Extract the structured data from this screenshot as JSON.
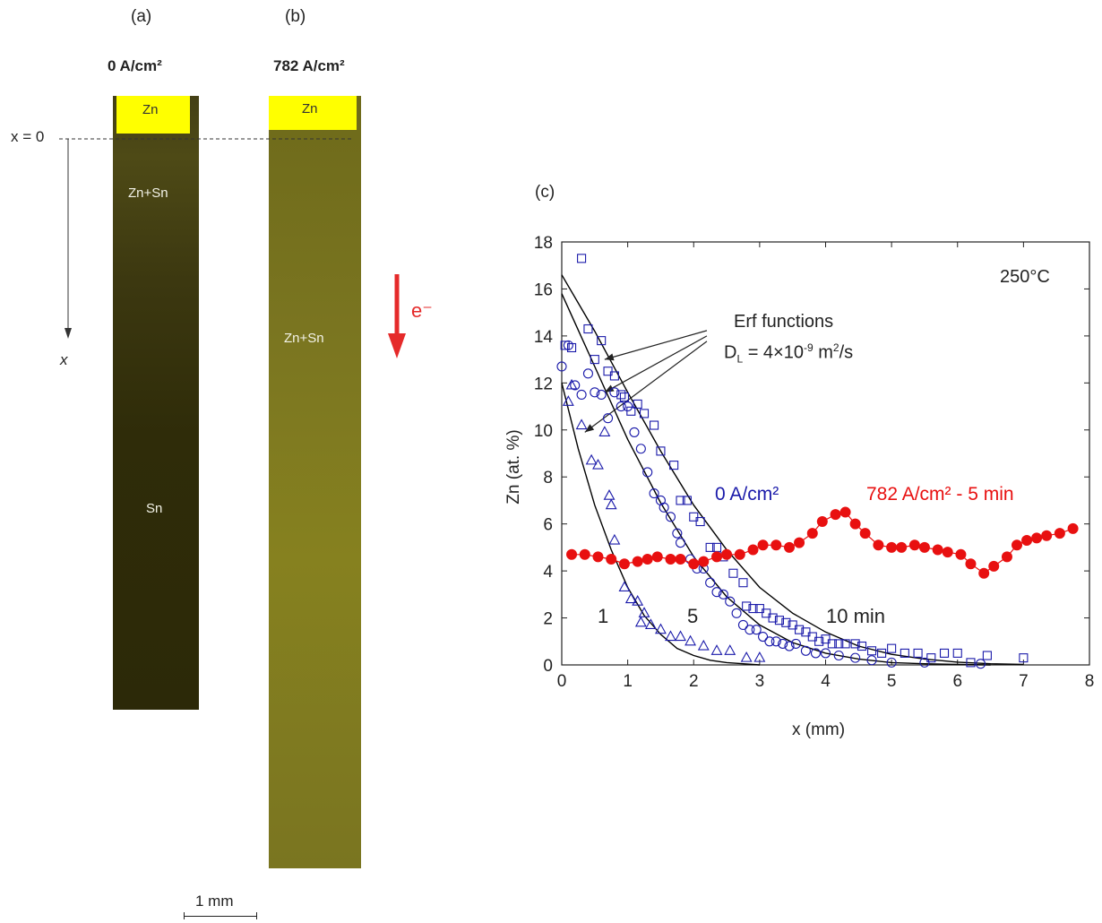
{
  "panels": {
    "a": {
      "label": "(a)",
      "current": "0 A/cm²",
      "zones": {
        "top": "Zn",
        "middle": "Zn+Sn",
        "bottom": "Sn"
      }
    },
    "b": {
      "label": "(b)",
      "current": "782 A/cm²",
      "zones": {
        "top": "Zn",
        "middle": "Zn+Sn"
      }
    },
    "c": {
      "label": "(c)"
    }
  },
  "axis_marker": {
    "origin": "x = 0",
    "direction": "x"
  },
  "electron_flow": "e⁻",
  "scale_bar": "1 mm",
  "colors": {
    "zn_layer": "#ffff00",
    "sample_dark": "#2a2608",
    "fit_line": "#000000",
    "zero_current": "#1a1aaa",
    "high_current": "#e81010",
    "arrow_red": "#e52a2a"
  },
  "chart_data": {
    "type": "scatter",
    "xlabel": "x (mm)",
    "ylabel": "Zn (at. %)",
    "xlim": [
      0,
      8
    ],
    "ylim": [
      0,
      18
    ],
    "xticks": [
      0,
      1,
      2,
      3,
      4,
      5,
      6,
      7,
      8
    ],
    "yticks": [
      0,
      2,
      4,
      6,
      8,
      10,
      12,
      14,
      16,
      18
    ],
    "grid": false,
    "annotations": {
      "temperature": "250°C",
      "fit_title": "Erf functions",
      "fit_diffusivity": "D",
      "fit_diffusivity_sub": "L",
      "fit_diffusivity_value": " = 4×10",
      "fit_diffusivity_exp": "-9",
      "fit_diffusivity_units": " m",
      "fit_diffusivity_units_exp": "2",
      "fit_diffusivity_units_end": "/s",
      "zero_current_label": "0 A/cm²",
      "high_current_label": "782 A/cm² - 5 min",
      "time_1": "1",
      "time_5": "5",
      "time_10": "10 min"
    },
    "series": [
      {
        "marker": "triangle",
        "points": [
          [
            0.1,
            11.2
          ],
          [
            0.15,
            11.9
          ],
          [
            0.3,
            10.2
          ],
          [
            0.45,
            8.7
          ],
          [
            0.55,
            8.5
          ],
          [
            0.65,
            9.9
          ],
          [
            0.72,
            7.2
          ],
          [
            0.75,
            6.8
          ],
          [
            0.8,
            5.3
          ],
          [
            0.95,
            3.3
          ],
          [
            1.05,
            2.8
          ],
          [
            1.15,
            2.7
          ],
          [
            1.2,
            1.8
          ],
          [
            1.25,
            2.2
          ],
          [
            1.35,
            1.7
          ],
          [
            1.5,
            1.5
          ],
          [
            1.65,
            1.2
          ],
          [
            1.8,
            1.2
          ],
          [
            1.95,
            1.0
          ],
          [
            2.15,
            0.8
          ],
          [
            2.35,
            0.6
          ],
          [
            2.55,
            0.6
          ],
          [
            2.8,
            0.3
          ],
          [
            3.0,
            0.3
          ]
        ]
      },
      {
        "marker": "circle",
        "points": [
          [
            0.0,
            12.7
          ],
          [
            0.1,
            13.6
          ],
          [
            0.2,
            11.9
          ],
          [
            0.3,
            11.5
          ],
          [
            0.4,
            12.4
          ],
          [
            0.5,
            11.6
          ],
          [
            0.6,
            11.5
          ],
          [
            0.7,
            10.5
          ],
          [
            0.8,
            11.6
          ],
          [
            0.9,
            11.0
          ],
          [
            1.0,
            11.0
          ],
          [
            1.1,
            9.9
          ],
          [
            1.2,
            9.2
          ],
          [
            1.3,
            8.2
          ],
          [
            1.4,
            7.3
          ],
          [
            1.5,
            7.0
          ],
          [
            1.55,
            6.7
          ],
          [
            1.65,
            6.3
          ],
          [
            1.75,
            5.6
          ],
          [
            1.8,
            5.2
          ],
          [
            1.95,
            4.5
          ],
          [
            2.05,
            4.1
          ],
          [
            2.15,
            4.1
          ],
          [
            2.25,
            3.5
          ],
          [
            2.35,
            3.1
          ],
          [
            2.45,
            3.0
          ],
          [
            2.55,
            2.7
          ],
          [
            2.65,
            2.2
          ],
          [
            2.75,
            1.7
          ],
          [
            2.85,
            1.5
          ],
          [
            2.95,
            1.5
          ],
          [
            3.05,
            1.2
          ],
          [
            3.15,
            1.0
          ],
          [
            3.25,
            1.0
          ],
          [
            3.35,
            0.9
          ],
          [
            3.45,
            0.8
          ],
          [
            3.55,
            0.9
          ],
          [
            3.7,
            0.6
          ],
          [
            3.85,
            0.5
          ],
          [
            4.0,
            0.5
          ],
          [
            4.2,
            0.4
          ],
          [
            4.45,
            0.3
          ],
          [
            4.7,
            0.2
          ],
          [
            5.0,
            0.1
          ],
          [
            5.5,
            0.1
          ],
          [
            6.35,
            0.05
          ]
        ]
      },
      {
        "marker": "square",
        "points": [
          [
            0.05,
            13.6
          ],
          [
            0.15,
            13.5
          ],
          [
            0.3,
            17.3
          ],
          [
            0.4,
            14.3
          ],
          [
            0.5,
            13.0
          ],
          [
            0.6,
            13.8
          ],
          [
            0.7,
            12.5
          ],
          [
            0.8,
            12.3
          ],
          [
            0.9,
            11.5
          ],
          [
            0.95,
            11.4
          ],
          [
            1.05,
            10.8
          ],
          [
            1.15,
            11.1
          ],
          [
            1.25,
            10.7
          ],
          [
            1.4,
            10.2
          ],
          [
            1.5,
            9.1
          ],
          [
            1.7,
            8.5
          ],
          [
            1.8,
            7.0
          ],
          [
            1.9,
            7.0
          ],
          [
            2.0,
            6.3
          ],
          [
            2.1,
            6.1
          ],
          [
            2.25,
            5.0
          ],
          [
            2.35,
            5.0
          ],
          [
            2.45,
            4.6
          ],
          [
            2.6,
            3.9
          ],
          [
            2.75,
            3.5
          ],
          [
            2.8,
            2.5
          ],
          [
            2.9,
            2.4
          ],
          [
            3.0,
            2.4
          ],
          [
            3.1,
            2.2
          ],
          [
            3.2,
            2.0
          ],
          [
            3.3,
            1.9
          ],
          [
            3.4,
            1.8
          ],
          [
            3.5,
            1.7
          ],
          [
            3.6,
            1.5
          ],
          [
            3.7,
            1.4
          ],
          [
            3.8,
            1.2
          ],
          [
            3.9,
            1.0
          ],
          [
            4.0,
            1.1
          ],
          [
            4.1,
            0.9
          ],
          [
            4.2,
            0.9
          ],
          [
            4.3,
            0.9
          ],
          [
            4.45,
            0.9
          ],
          [
            4.55,
            0.8
          ],
          [
            4.7,
            0.6
          ],
          [
            4.85,
            0.5
          ],
          [
            5.0,
            0.7
          ],
          [
            5.2,
            0.5
          ],
          [
            5.4,
            0.5
          ],
          [
            5.6,
            0.3
          ],
          [
            5.8,
            0.5
          ],
          [
            6.0,
            0.5
          ],
          [
            6.2,
            0.1
          ],
          [
            6.45,
            0.4
          ],
          [
            7.0,
            0.3
          ]
        ]
      },
      {
        "marker": "filled-circle",
        "points": [
          [
            0.15,
            4.7
          ],
          [
            0.35,
            4.7
          ],
          [
            0.55,
            4.6
          ],
          [
            0.75,
            4.5
          ],
          [
            0.95,
            4.3
          ],
          [
            1.15,
            4.4
          ],
          [
            1.3,
            4.5
          ],
          [
            1.45,
            4.6
          ],
          [
            1.65,
            4.5
          ],
          [
            1.8,
            4.5
          ],
          [
            2.0,
            4.3
          ],
          [
            2.15,
            4.4
          ],
          [
            2.35,
            4.6
          ],
          [
            2.5,
            4.7
          ],
          [
            2.7,
            4.7
          ],
          [
            2.9,
            4.9
          ],
          [
            3.05,
            5.1
          ],
          [
            3.25,
            5.1
          ],
          [
            3.45,
            5.0
          ],
          [
            3.6,
            5.2
          ],
          [
            3.8,
            5.6
          ],
          [
            3.95,
            6.1
          ],
          [
            4.15,
            6.4
          ],
          [
            4.3,
            6.5
          ],
          [
            4.45,
            6.0
          ],
          [
            4.6,
            5.6
          ],
          [
            4.8,
            5.1
          ],
          [
            5.0,
            5.0
          ],
          [
            5.15,
            5.0
          ],
          [
            5.35,
            5.1
          ],
          [
            5.5,
            5.0
          ],
          [
            5.7,
            4.9
          ],
          [
            5.85,
            4.8
          ],
          [
            6.05,
            4.7
          ],
          [
            6.2,
            4.3
          ],
          [
            6.4,
            3.9
          ],
          [
            6.55,
            4.2
          ],
          [
            6.75,
            4.6
          ],
          [
            6.9,
            5.1
          ],
          [
            7.05,
            5.3
          ],
          [
            7.2,
            5.4
          ],
          [
            7.35,
            5.5
          ],
          [
            7.55,
            5.6
          ],
          [
            7.75,
            5.8
          ]
        ]
      }
    ],
    "fit_curves": [
      {
        "time_label": "1",
        "x": [
          0,
          0.25,
          0.5,
          0.75,
          1.0,
          1.25,
          1.5,
          1.75,
          2.0,
          2.25,
          2.5,
          2.75,
          3.0
        ],
        "y": [
          12.0,
          9.2,
          6.8,
          4.9,
          3.3,
          2.1,
          1.3,
          0.7,
          0.4,
          0.2,
          0.1,
          0.05,
          0.0
        ]
      },
      {
        "time_label": "5",
        "x": [
          0,
          0.5,
          1.0,
          1.5,
          2.0,
          2.5,
          3.0,
          3.5,
          4.0,
          4.5,
          5.0,
          5.5,
          6.0,
          6.5
        ],
        "y": [
          15.8,
          12.7,
          9.6,
          6.9,
          4.6,
          2.9,
          1.7,
          0.95,
          0.5,
          0.25,
          0.1,
          0.05,
          0.02,
          0.0
        ]
      },
      {
        "time_label": "10 min",
        "x": [
          0,
          0.5,
          1.0,
          1.5,
          2.0,
          2.5,
          3.0,
          3.5,
          4.0,
          4.5,
          5.0,
          5.5,
          6.0,
          6.5,
          7.0
        ],
        "y": [
          16.6,
          14.2,
          11.6,
          9.1,
          6.8,
          4.9,
          3.3,
          2.2,
          1.4,
          0.8,
          0.45,
          0.25,
          0.12,
          0.05,
          0.02
        ]
      }
    ]
  }
}
